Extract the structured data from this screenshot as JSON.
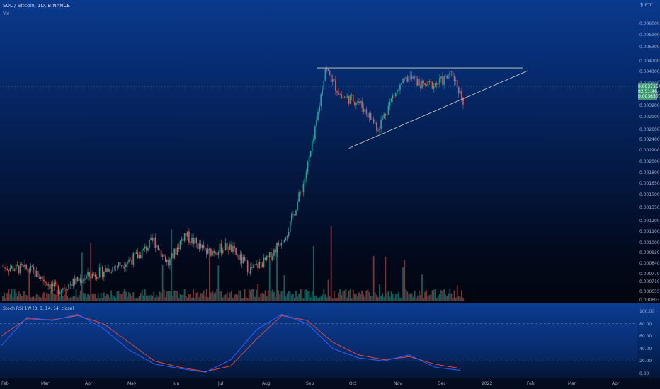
{
  "chart_title": "SOL / Bitcoin, 1D, BINANCE",
  "volume_label": "Vol",
  "unit": "BTC",
  "unit_prefix": "₿",
  "price_ticks": [
    "0.0060000",
    "0.0059000",
    "0.0053000",
    "0.0047000",
    "0.0043000",
    "0.0039000",
    "0.0035000",
    "0.0032000",
    "0.0029000",
    "0.0026000",
    "0.0024000",
    "0.0022000",
    "0.0020000",
    "0.0018000",
    "0.0016500",
    "0.0015000",
    "0.0013500",
    "0.0012000",
    "0.0011000",
    "0.0010000",
    "0.0009200",
    "0.0008400",
    "0.0007700",
    "0.0007100",
    "0.0006550",
    "0.0006030"
  ],
  "current_price_label": [
    "0.0037164",
    "02:51:46",
    "0.0036500"
  ],
  "rsi": {
    "label": "Stoch RSI  1W (3, 3, 14, 14, close)",
    "ticks": [
      "100.00",
      "80.00",
      "60.00",
      "40.00",
      "20.00",
      "0.00"
    ]
  },
  "time_labels": [
    "Feb",
    "Mar",
    "Apr",
    "May",
    "Jun",
    "Jul",
    "Aug",
    "Sep",
    "Oct",
    "Nov",
    "Dec",
    "2022",
    "Feb",
    "Mar",
    "Apr"
  ],
  "chart_data": {
    "type": "candlestick",
    "symbol": "SOL / Bitcoin",
    "interval": "1D",
    "exchange": "BINANCE",
    "scale": "log",
    "ylim": [
      0.0006,
      0.0065
    ],
    "close_series": [
      [
        "2021-02-01",
        0.0008
      ],
      [
        "2021-02-20",
        0.00078
      ],
      [
        "2021-03-10",
        0.00066
      ],
      [
        "2021-03-25",
        0.00072
      ],
      [
        "2021-04-10",
        0.00077
      ],
      [
        "2021-04-25",
        0.00083
      ],
      [
        "2021-05-05",
        0.00088
      ],
      [
        "2021-05-15",
        0.001
      ],
      [
        "2021-05-25",
        0.00082
      ],
      [
        "2021-06-05",
        0.00105
      ],
      [
        "2021-06-20",
        0.0009
      ],
      [
        "2021-07-05",
        0.00095
      ],
      [
        "2021-07-20",
        0.00078
      ],
      [
        "2021-08-01",
        0.00085
      ],
      [
        "2021-08-15",
        0.0011
      ],
      [
        "2021-08-25",
        0.0016
      ],
      [
        "2021-09-01",
        0.0023
      ],
      [
        "2021-09-09",
        0.0042
      ],
      [
        "2021-09-20",
        0.0033
      ],
      [
        "2021-10-01",
        0.0032
      ],
      [
        "2021-10-15",
        0.00255
      ],
      [
        "2021-10-25",
        0.0033
      ],
      [
        "2021-11-05",
        0.0039
      ],
      [
        "2021-11-15",
        0.0036
      ],
      [
        "2021-11-25",
        0.0037
      ],
      [
        "2021-12-05",
        0.004
      ],
      [
        "2021-12-12",
        0.0032
      ],
      [
        "2021-12-16",
        0.00365
      ]
    ],
    "annotations": {
      "resistance_line": 0.0042,
      "ascending_support": [
        [
          "2021-09-25",
          0.00215
        ],
        [
          "2022-01-25",
          0.0041
        ]
      ]
    },
    "stoch_rsi": {
      "k": [
        [
          0,
          45
        ],
        [
          10,
          90
        ],
        [
          20,
          85
        ],
        [
          30,
          95
        ],
        [
          40,
          72
        ],
        [
          50,
          38
        ],
        [
          60,
          15
        ],
        [
          70,
          8
        ],
        [
          80,
          2
        ],
        [
          90,
          22
        ],
        [
          100,
          70
        ],
        [
          110,
          95
        ],
        [
          120,
          80
        ],
        [
          130,
          40
        ],
        [
          140,
          25
        ],
        [
          150,
          20
        ],
        [
          160,
          30
        ],
        [
          170,
          10
        ],
        [
          180,
          5
        ]
      ],
      "d": [
        [
          0,
          60
        ],
        [
          10,
          88
        ],
        [
          20,
          86
        ],
        [
          30,
          93
        ],
        [
          40,
          80
        ],
        [
          50,
          50
        ],
        [
          60,
          20
        ],
        [
          70,
          10
        ],
        [
          80,
          3
        ],
        [
          90,
          12
        ],
        [
          100,
          55
        ],
        [
          110,
          93
        ],
        [
          120,
          85
        ],
        [
          130,
          50
        ],
        [
          140,
          30
        ],
        [
          150,
          22
        ],
        [
          160,
          27
        ],
        [
          170,
          15
        ],
        [
          180,
          8
        ]
      ]
    },
    "colors": {
      "up": "#26a69a",
      "down": "#ef5350",
      "k": "#2962ff",
      "d": "#e0483f"
    }
  }
}
